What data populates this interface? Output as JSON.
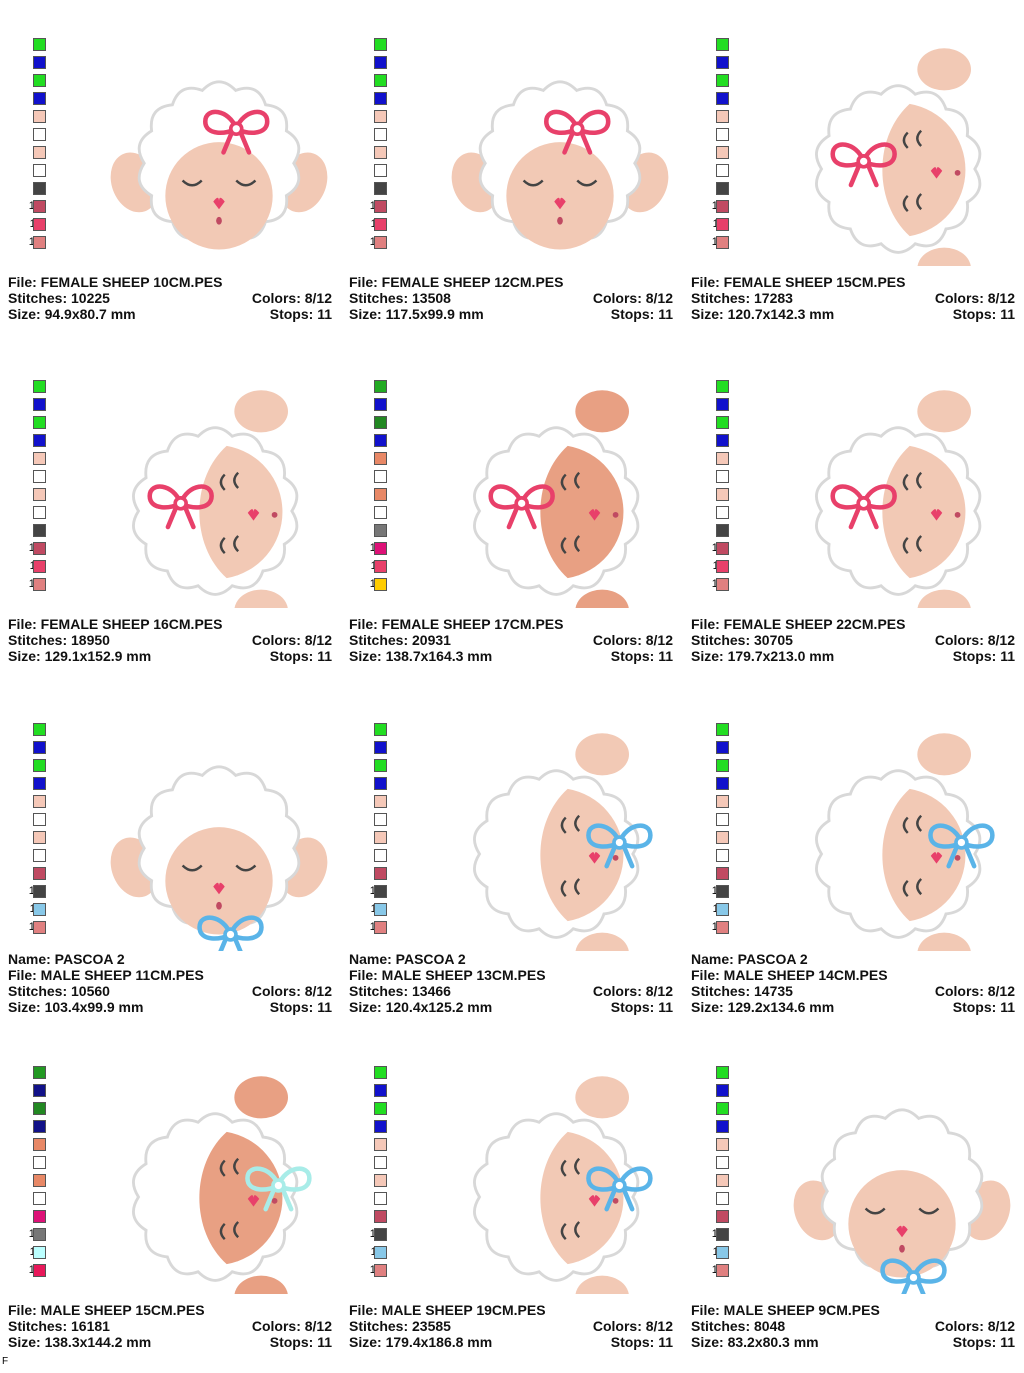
{
  "palettes": {
    "a": [
      "#22dd22",
      "#1111cc",
      "#22dd22",
      "#1111cc",
      "#f5c8b8",
      "#ffffff",
      "#f5c8b8",
      "#ffffff",
      "#444444",
      "#c04a62",
      "#e8406a",
      "#e08080"
    ],
    "b": [
      "#22dd22",
      "#1111cc",
      "#22dd22",
      "#1111cc",
      "#f5c8b8",
      "#ffffff",
      "#f5c8b8",
      "#ffffff",
      "#444444",
      "#c04a62",
      "#e8406a",
      "#e08080"
    ],
    "c": [
      "#22aa22",
      "#1111cc",
      "#228822",
      "#1111cc",
      "#e88866",
      "#ffffff",
      "#e88866",
      "#ffffff",
      "#777777",
      "#dd1177",
      "#e8406a",
      "#ffcc00"
    ],
    "d": [
      "#22dd22",
      "#1111cc",
      "#22dd22",
      "#1111cc",
      "#f5c8b8",
      "#ffffff",
      "#f5c8b8",
      "#ffffff",
      "#c04a62",
      "#444444",
      "#88c8e8",
      "#e08080"
    ],
    "e": [
      "#229922",
      "#111188",
      "#228822",
      "#111188",
      "#e88866",
      "#ffffff",
      "#e88866",
      "#ffffff",
      "#dd1177",
      "#777777",
      "#bbffff",
      "#e8185a"
    ]
  },
  "cells": [
    {
      "palette": "a",
      "name": "",
      "file": "File: FEMALE SHEEP 10CM.PES",
      "stitches": "Stitches: 10225",
      "colors": "Colors: 8/12",
      "size": "Size: 94.9x80.7 mm",
      "stops": "Stops: 11"
    },
    {
      "palette": "a",
      "name": "",
      "file": "File: FEMALE SHEEP 12CM.PES",
      "stitches": "Stitches: 13508",
      "colors": "Colors: 8/12",
      "size": "Size: 117.5x99.9 mm",
      "stops": "Stops: 11"
    },
    {
      "palette": "a",
      "name": "",
      "file": "File: FEMALE SHEEP 15CM.PES",
      "stitches": "Stitches: 17283",
      "colors": "Colors: 8/12",
      "size": "Size: 120.7x142.3 mm",
      "stops": "Stops: 11"
    },
    {
      "palette": "b",
      "name": "",
      "file": "File: FEMALE SHEEP 16CM.PES",
      "stitches": "Stitches: 18950",
      "colors": "Colors: 8/12",
      "size": "Size: 129.1x152.9 mm",
      "stops": "Stops: 11"
    },
    {
      "palette": "c",
      "name": "",
      "file": "File: FEMALE SHEEP 17CM.PES",
      "stitches": "Stitches: 20931",
      "colors": "Colors: 8/12",
      "size": "Size: 138.7x164.3 mm",
      "stops": "Stops: 11"
    },
    {
      "palette": "b",
      "name": "",
      "file": "File: FEMALE SHEEP 22CM.PES",
      "stitches": "Stitches: 30705",
      "colors": "Colors: 8/12",
      "size": "Size: 179.7x213.0 mm",
      "stops": "Stops: 11"
    },
    {
      "palette": "d",
      "name": "Name: PASCOA 2",
      "file": "File: MALE SHEEP 11CM.PES",
      "stitches": "Stitches: 10560",
      "colors": "Colors: 8/12",
      "size": "Size: 103.4x99.9 mm",
      "stops": "Stops: 11"
    },
    {
      "palette": "d",
      "name": "Name: PASCOA 2",
      "file": "File: MALE SHEEP 13CM.PES",
      "stitches": "Stitches: 13466",
      "colors": "Colors: 8/12",
      "size": "Size: 120.4x125.2 mm",
      "stops": "Stops: 11"
    },
    {
      "palette": "d",
      "name": "Name: PASCOA 2",
      "file": "File: MALE SHEEP 14CM.PES",
      "stitches": "Stitches: 14735",
      "colors": "Colors: 8/12",
      "size": "Size: 129.2x134.6 mm",
      "stops": "Stops: 11"
    },
    {
      "palette": "e",
      "name": "",
      "file": "File: MALE SHEEP 15CM.PES",
      "stitches": "Stitches: 16181",
      "colors": "Colors: 8/12",
      "size": "Size: 138.3x144.2 mm",
      "stops": "Stops: 11"
    },
    {
      "palette": "d",
      "name": "",
      "file": "File: MALE SHEEP 19CM.PES",
      "stitches": "Stitches: 23585",
      "colors": "Colors: 8/12",
      "size": "Size: 179.4x186.8 mm",
      "stops": "Stops: 11"
    },
    {
      "palette": "d",
      "name": "",
      "file": "File: MALE SHEEP 9CM.PES",
      "stitches": "Stitches: 8048",
      "colors": "Colors: 8/12",
      "size": "Size: 83.2x80.3 mm",
      "stops": "Stops: 11"
    }
  ],
  "corner_mark": "F"
}
